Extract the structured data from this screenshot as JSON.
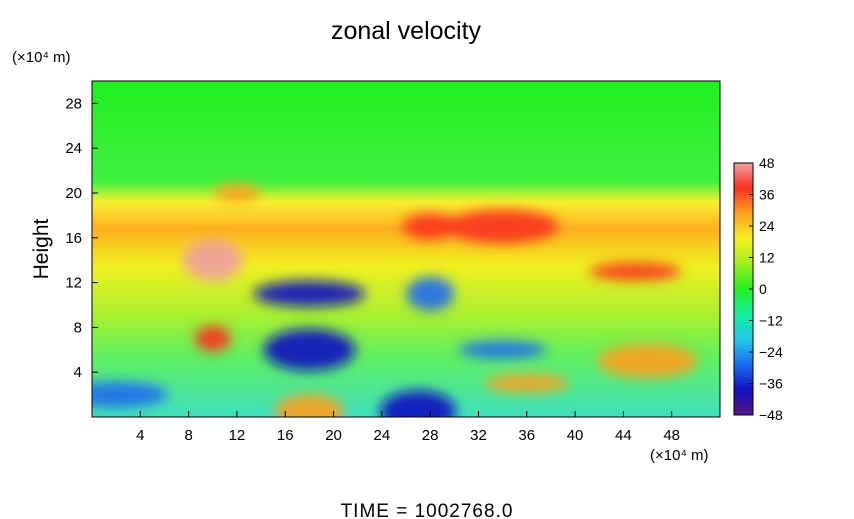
{
  "chart_data": {
    "type": "heatmap",
    "title": "zonal velocity",
    "ylabel": "Height",
    "xunit": "(×10⁴ m)",
    "yunit": "(×10⁴ m)",
    "x_ticks": [
      4,
      8,
      12,
      16,
      20,
      24,
      28,
      32,
      36,
      40,
      44,
      48
    ],
    "y_ticks": [
      4,
      8,
      12,
      16,
      20,
      24,
      28
    ],
    "xlim": [
      0,
      52
    ],
    "ylim": [
      0,
      30
    ],
    "colorbar": {
      "ticks": [
        48,
        36,
        24,
        12,
        0,
        -12,
        -24,
        -36,
        -48
      ],
      "range": [
        -48,
        48
      ],
      "colors": [
        "#5a1480",
        "#1010c0",
        "#1c6cf0",
        "#20c8e8",
        "#10f0a0",
        "#20f020",
        "#a0f020",
        "#f8f020",
        "#ffa020",
        "#f83020",
        "#f0a0a0"
      ]
    },
    "features": [
      {
        "x": 12,
        "y": 20,
        "value": 32
      },
      {
        "x": 28,
        "y": 17,
        "value": 40
      },
      {
        "x": 34,
        "y": 17,
        "value": 36
      },
      {
        "x": 10,
        "y": 14,
        "value": 44
      },
      {
        "x": 45,
        "y": 13,
        "value": 36
      },
      {
        "x": 18,
        "y": 11,
        "value": -36
      },
      {
        "x": 28,
        "y": 11,
        "value": -32
      },
      {
        "x": 18,
        "y": 6,
        "value": -36
      },
      {
        "x": 34,
        "y": 6,
        "value": -32
      },
      {
        "x": 10,
        "y": 7,
        "value": 40
      },
      {
        "x": 18,
        "y": 0.5,
        "value": 32
      },
      {
        "x": 27,
        "y": 0.5,
        "value": -40
      },
      {
        "x": 36,
        "y": 3,
        "value": 28
      },
      {
        "x": 2,
        "y": 2,
        "value": -28
      },
      {
        "x": 46,
        "y": 5,
        "value": 24
      }
    ]
  },
  "footer": {
    "time_label": "TIME  =  1002768.0"
  }
}
